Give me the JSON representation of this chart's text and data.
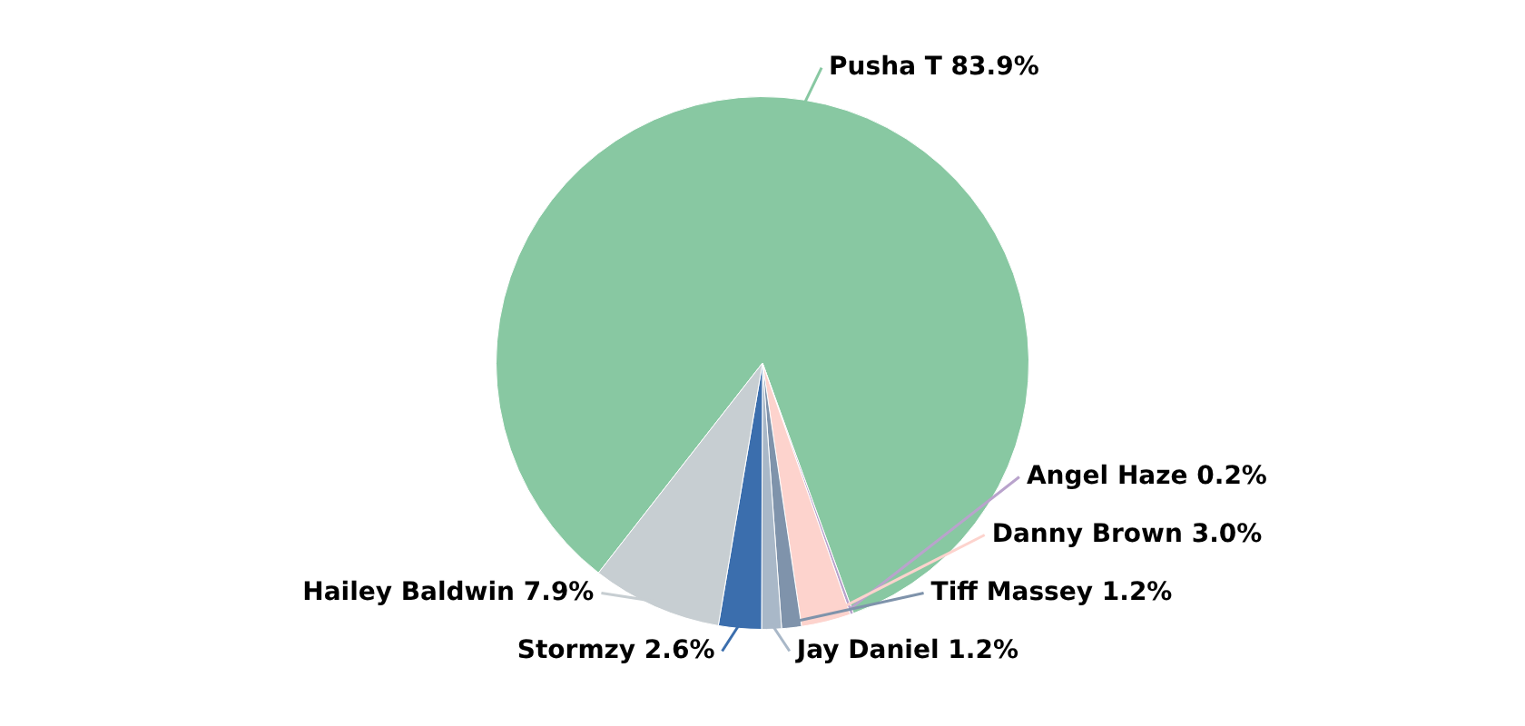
{
  "chart_data": {
    "type": "pie",
    "categories": [
      "Pusha T",
      "Angel Haze",
      "Danny Brown",
      "Tiff Massey",
      "Jay Daniel",
      "Stormzy",
      "Hailey Baldwin"
    ],
    "values": [
      83.9,
      0.2,
      3.0,
      1.2,
      1.2,
      2.6,
      7.9
    ],
    "colors": [
      "#88c8a2",
      "#b9a3cc",
      "#fdd3cd",
      "#7f93ab",
      "#a9b8c8",
      "#3b6ead",
      "#c7ced2"
    ],
    "value_labels": [
      "83.9%",
      "0.2%",
      "3.0%",
      "1.2%",
      "1.2%",
      "2.6%",
      "7.9%"
    ],
    "legend": false
  }
}
